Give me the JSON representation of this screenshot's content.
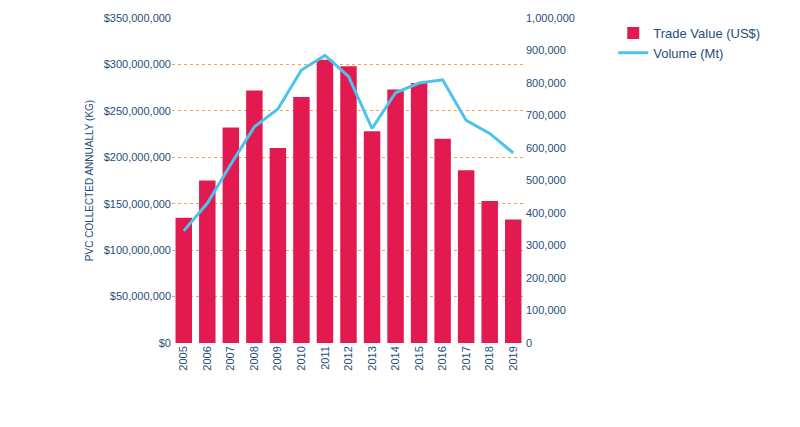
{
  "chart_data": {
    "type": "bar",
    "y_label": "PVC COLLECTED ANNUALLY (KG)",
    "categories": [
      "2005",
      "2006",
      "2007",
      "2008",
      "2009",
      "2010",
      "2011",
      "2012",
      "2013",
      "2014",
      "2015",
      "2016",
      "2017",
      "2018",
      "2019"
    ],
    "series": [
      {
        "name": "Trade Value (US$)",
        "type": "bar",
        "color": "#e31a4f",
        "values": [
          135000000,
          175000000,
          232000000,
          272000000,
          210000000,
          265000000,
          305000000,
          298000000,
          228000000,
          273000000,
          280000000,
          220000000,
          186000000,
          153000000,
          133000000
        ]
      },
      {
        "name": "Volume (Mt)",
        "type": "line",
        "color": "#4cc3ea",
        "axis": "y2",
        "values": [
          345000,
          430000,
          550000,
          665000,
          720000,
          840000,
          885000,
          820000,
          660000,
          770000,
          800000,
          810000,
          685000,
          645000,
          585000
        ]
      }
    ],
    "ylim": [
      0,
      350000000
    ],
    "yticks": [
      {
        "value": 0,
        "label": "$0"
      },
      {
        "value": 50000000,
        "label": "$50,000,000"
      },
      {
        "value": 100000000,
        "label": "$100,000,000"
      },
      {
        "value": 150000000,
        "label": "$150,000,000"
      },
      {
        "value": 200000000,
        "label": "$200,000,000"
      },
      {
        "value": 250000000,
        "label": "$250,000,000"
      },
      {
        "value": 300000000,
        "label": "$300,000,000"
      },
      {
        "value": 350000000,
        "label": "$350,000,000"
      }
    ],
    "y2lim": [
      0,
      1000000
    ],
    "y2ticks": [
      0,
      {
        "value": 100000,
        "label": "100,000"
      },
      {
        "value": 200000,
        "label": "200,000"
      },
      {
        "value": 300000,
        "label": "300,000"
      },
      {
        "value": 400000,
        "label": "400,000"
      },
      {
        "value": 500000,
        "label": "500,000"
      },
      {
        "value": 600000,
        "label": "600,000"
      },
      {
        "value": 700000,
        "label": "700,000"
      },
      {
        "value": 800000,
        "label": "800,000"
      },
      {
        "value": 900000,
        "label": "900,000"
      },
      {
        "value": 1000000,
        "label": "1,000,000"
      }
    ],
    "grid": true,
    "legend": "top right"
  }
}
